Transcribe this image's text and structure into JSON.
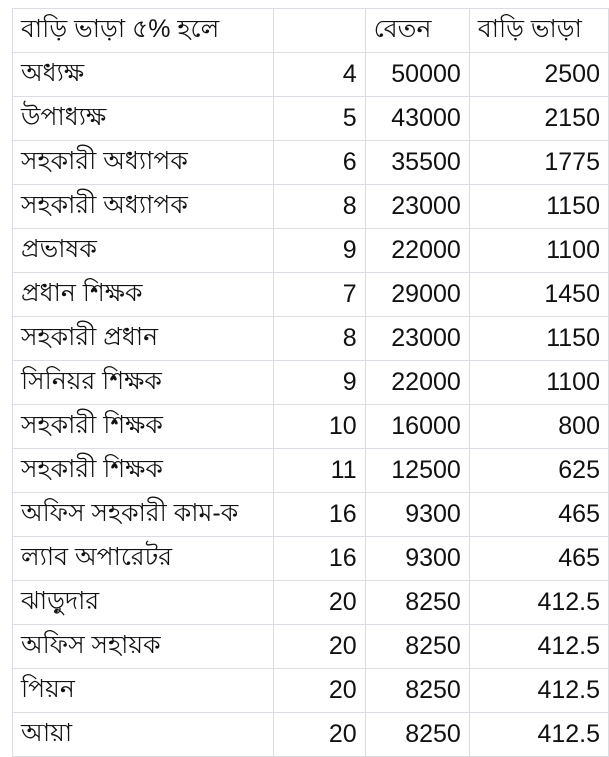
{
  "header": {
    "title": "বাড়ি ভাড়া ৫% হলে",
    "grade": "",
    "salary": "বেতন",
    "house_rent": "বাড়ি ভাড়া"
  },
  "rows": [
    {
      "post": "অধ্যক্ষ",
      "grade": "4",
      "salary": "50000",
      "rent": "2500"
    },
    {
      "post": "উপাধ্যক্ষ",
      "grade": "5",
      "salary": "43000",
      "rent": "2150"
    },
    {
      "post": "সহকারী অধ্যাপক",
      "grade": "6",
      "salary": "35500",
      "rent": "1775"
    },
    {
      "post": "সহকারী অধ্যাপক",
      "grade": "8",
      "salary": "23000",
      "rent": "1150"
    },
    {
      "post": "প্রভাষক",
      "grade": "9",
      "salary": "22000",
      "rent": "1100"
    },
    {
      "post": "প্রধান শিক্ষক",
      "grade": "7",
      "salary": "29000",
      "rent": "1450"
    },
    {
      "post": "সহকারী প্রধান",
      "grade": "8",
      "salary": "23000",
      "rent": "1150"
    },
    {
      "post": "সিনিয়র শিক্ষক",
      "grade": "9",
      "salary": "22000",
      "rent": "1100"
    },
    {
      "post": "সহকারী শিক্ষক",
      "grade": "10",
      "salary": "16000",
      "rent": "800"
    },
    {
      "post": "সহকারী শিক্ষক",
      "grade": "11",
      "salary": "12500",
      "rent": "625"
    },
    {
      "post": "অফিস সহকারী কাম-ক",
      "grade": "16",
      "salary": "9300",
      "rent": "465"
    },
    {
      "post": "ল্যাব অপারেটর",
      "grade": "16",
      "salary": "9300",
      "rent": "465"
    },
    {
      "post": "ঝাড়ুদার",
      "grade": "20",
      "salary": "8250",
      "rent": "412.5"
    },
    {
      "post": "অফিস সহায়ক",
      "grade": "20",
      "salary": "8250",
      "rent": "412.5"
    },
    {
      "post": "পিয়ন",
      "grade": "20",
      "salary": "8250",
      "rent": "412.5"
    },
    {
      "post": "আয়া",
      "grade": "20",
      "salary": "8250",
      "rent": "412.5"
    }
  ]
}
